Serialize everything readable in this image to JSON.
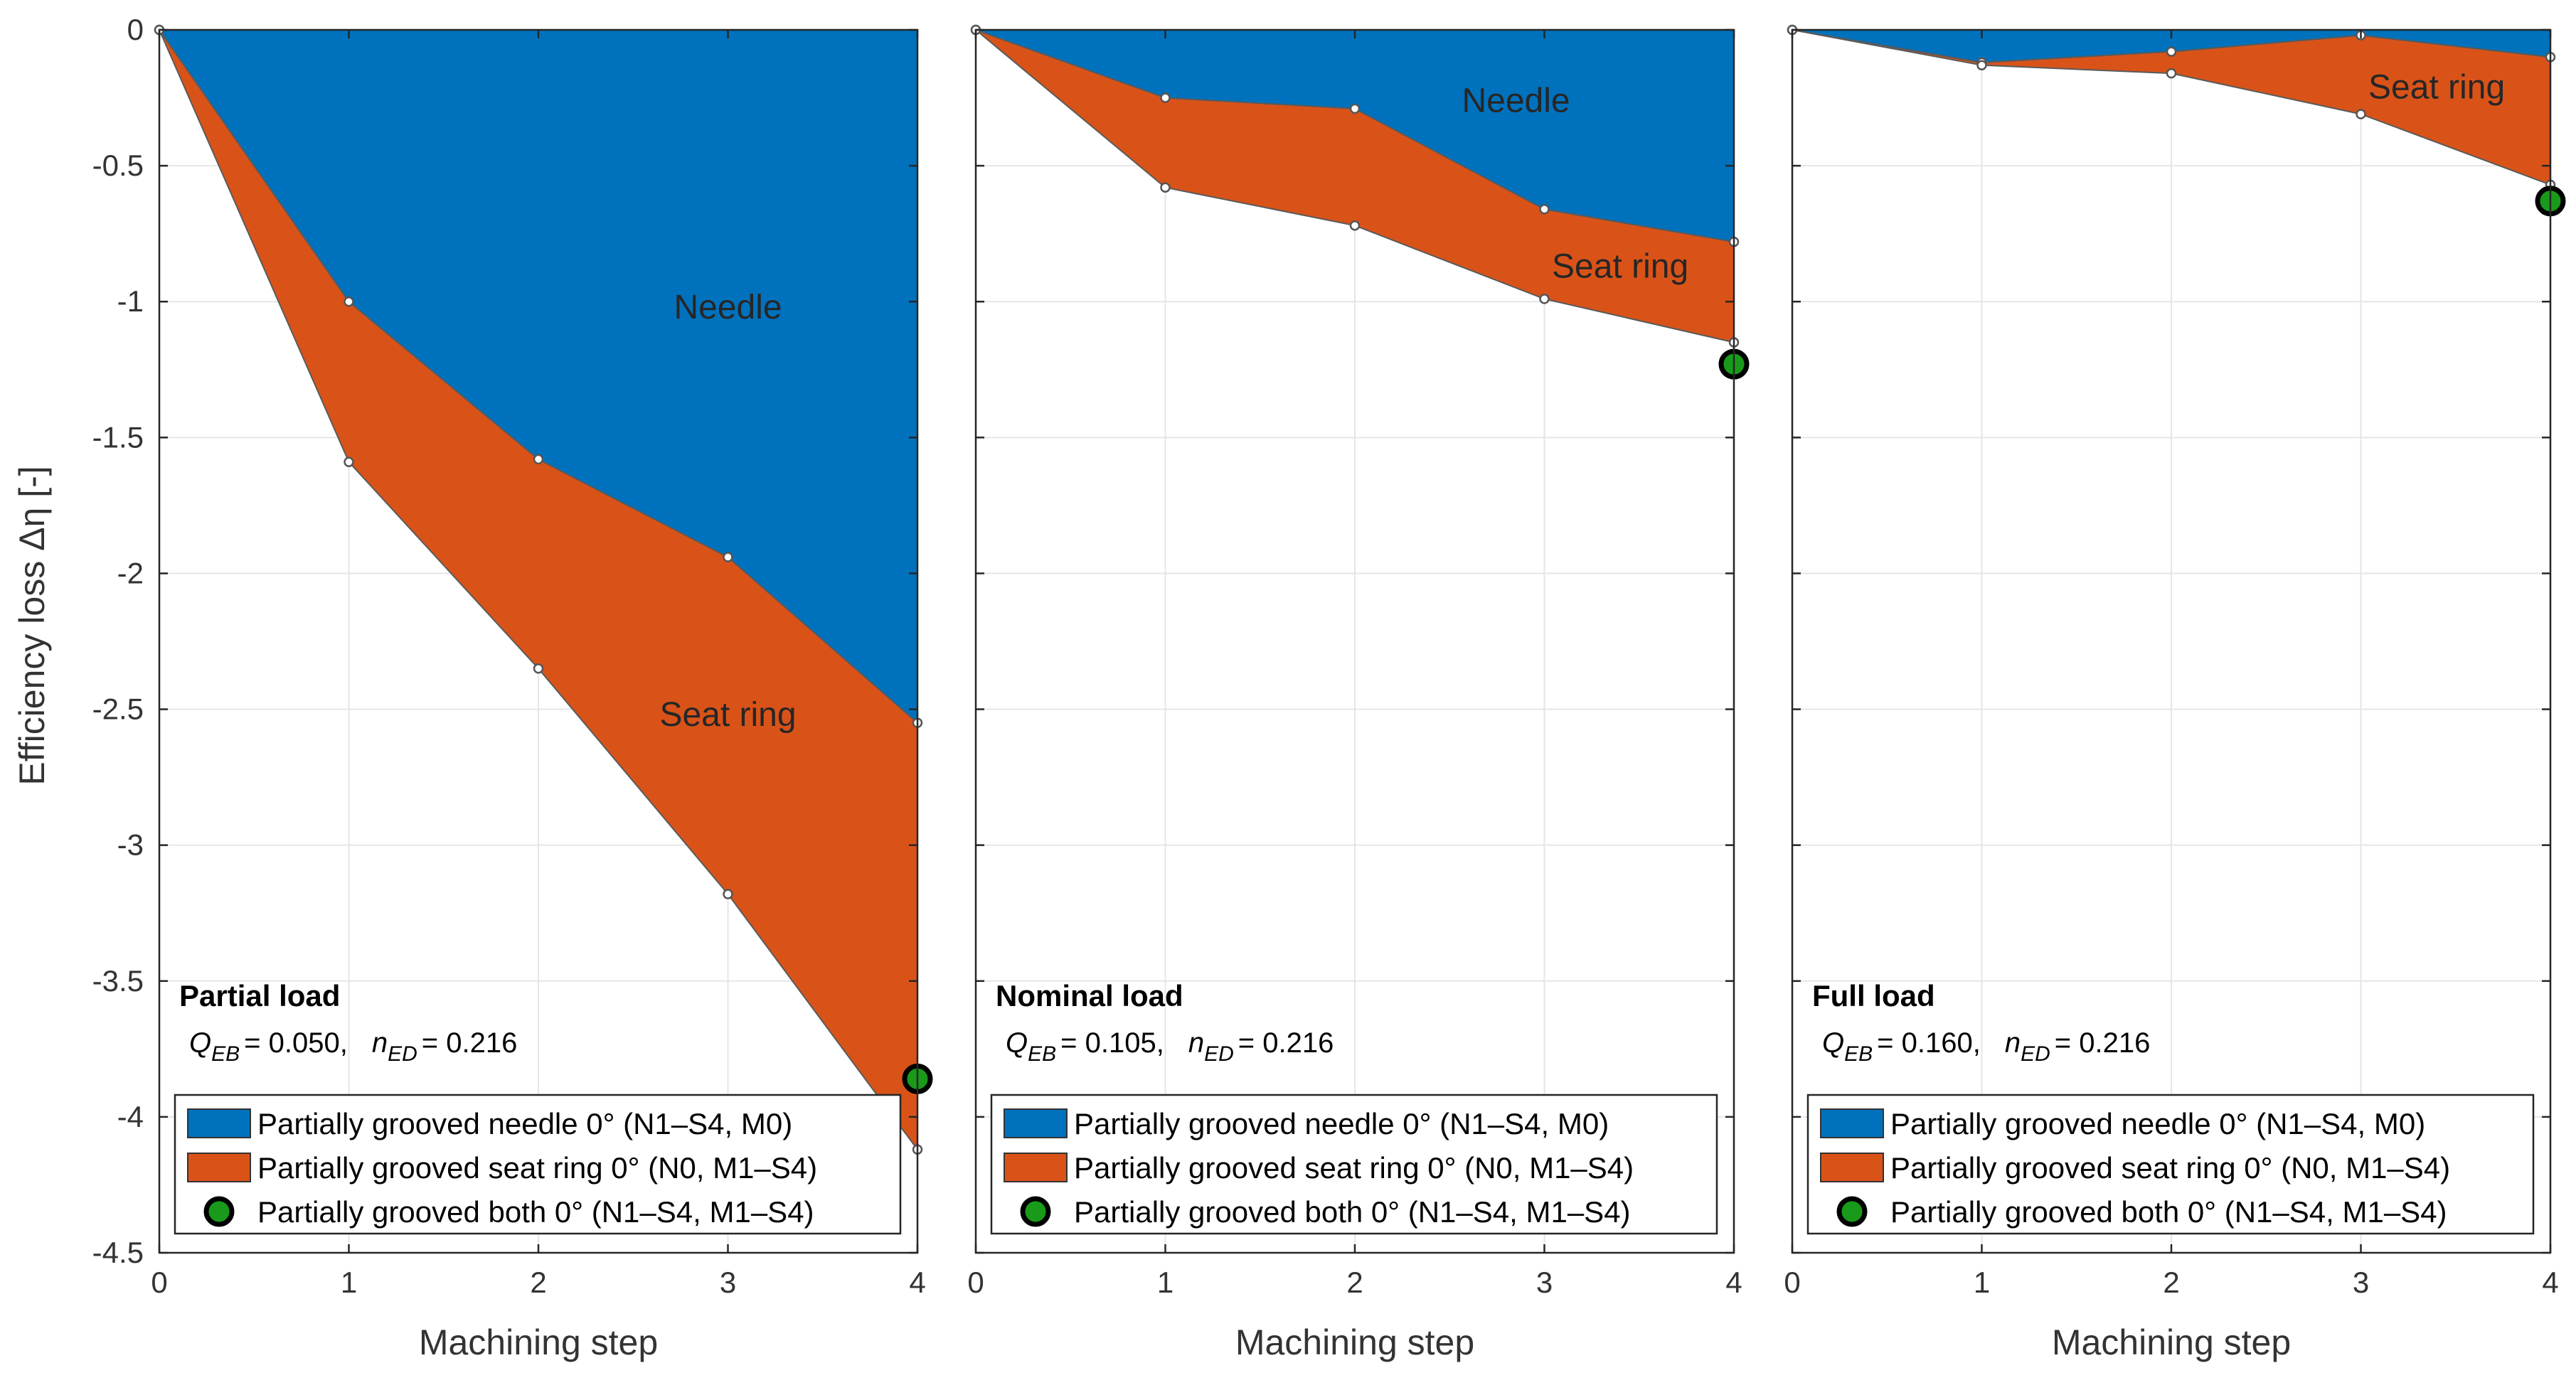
{
  "chart_data": {
    "type": "area",
    "ylabel": "Efficiency loss Δη [-]",
    "ylim": [
      -4.5,
      0
    ],
    "yticks": [
      0,
      -0.5,
      -1,
      -1.5,
      -2,
      -2.5,
      -3,
      -3.5,
      -4,
      -4.5
    ],
    "ytick_labels": [
      "0",
      "-0.5",
      "-1",
      "-1.5",
      "-2",
      "-2.5",
      "-3",
      "-3.5",
      "-4",
      "-4.5"
    ],
    "xlim": [
      0,
      4
    ],
    "xticks": [
      0,
      1,
      2,
      3,
      4
    ],
    "xtick_labels": [
      "0",
      "1",
      "2",
      "3",
      "4"
    ],
    "grid": true,
    "legend": {
      "placement": "bottom",
      "entries": [
        {
          "label": "Partially grooved needle 0° (N1–S4, M0)",
          "marker": "patch",
          "color": "#0072BD"
        },
        {
          "label": "Partially grooved seat ring 0° (N0, M1–S4)",
          "marker": "patch",
          "color": "#D95319"
        },
        {
          "label": "Partially grooved both 0° (N1–S4, M1–S4)",
          "marker": "circle",
          "color": "#1A9A1A"
        }
      ]
    },
    "colors": {
      "needle": "#0072BD",
      "seat_ring": "#D95319",
      "both": "#1A9A1A",
      "edge": "#5A5A5A"
    },
    "panels": [
      {
        "title": "Partial load",
        "q_value": "= 0.050,",
        "n_value": "= 0.216",
        "xlabel": "Machining step",
        "x": [
          0,
          1,
          2,
          3,
          4
        ],
        "needle": [
          0,
          -1.0,
          -1.58,
          -1.94,
          -2.55
        ],
        "needle_plus_seat": [
          0,
          -1.59,
          -2.35,
          -3.18,
          -4.12
        ],
        "both_point": {
          "x": 4,
          "y": -3.86
        },
        "region_labels": [
          {
            "text": "Needle",
            "x": 3.0,
            "y": -1.02
          },
          {
            "text": "Seat ring",
            "x": 3.0,
            "y": -2.52
          }
        ]
      },
      {
        "title": "Nominal load",
        "q_value": "= 0.105,",
        "n_value": "= 0.216",
        "xlabel": "Machining step",
        "x": [
          0,
          1,
          2,
          3,
          4
        ],
        "needle": [
          0,
          -0.25,
          -0.29,
          -0.66,
          -0.78
        ],
        "needle_plus_seat": [
          0,
          -0.58,
          -0.72,
          -0.99,
          -1.15
        ],
        "both_point": {
          "x": 4,
          "y": -1.23
        },
        "region_labels": [
          {
            "text": "Needle",
            "x": 2.85,
            "y": -0.26
          },
          {
            "text": "Seat ring",
            "x": 3.4,
            "y": -0.87
          }
        ]
      },
      {
        "title": "Full load",
        "q_value": "= 0.160,",
        "n_value": "= 0.216",
        "xlabel": "Machining step",
        "x": [
          0,
          1,
          2,
          3,
          4
        ],
        "needle": [
          0,
          -0.12,
          -0.08,
          -0.02,
          -0.1
        ],
        "needle_plus_seat": [
          0,
          -0.13,
          -0.16,
          -0.31,
          -0.57
        ],
        "both_point": {
          "x": 4,
          "y": -0.63
        },
        "region_labels": [
          {
            "text": "Seat ring",
            "x": 3.4,
            "y": -0.21
          }
        ]
      }
    ]
  }
}
